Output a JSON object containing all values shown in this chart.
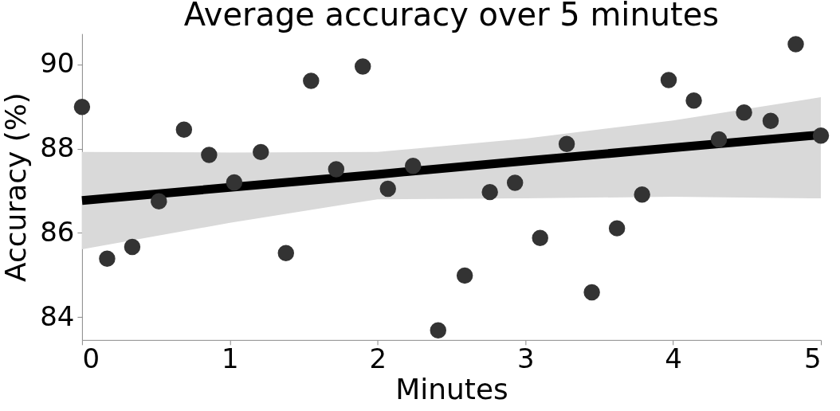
{
  "chart_data": {
    "type": "scatter",
    "title": "Average accuracy over 5 minutes",
    "xlabel": "Minutes",
    "ylabel": "Accuracy (%)",
    "xlim": [
      0,
      5
    ],
    "ylim": [
      83.46,
      90.73
    ],
    "xticks": [
      0,
      1,
      2,
      3,
      4,
      5
    ],
    "yticks": [
      84,
      86,
      88,
      90
    ],
    "grid": false,
    "marker": "circle",
    "series": [
      {
        "color": "#333333",
        "x": [
          0,
          0.17,
          0.34,
          0.52,
          0.69,
          0.86,
          1.03,
          1.21,
          1.38,
          1.55,
          1.72,
          1.9,
          2.07,
          2.24,
          2.41,
          2.59,
          2.76,
          2.93,
          3.1,
          3.28,
          3.45,
          3.62,
          3.79,
          3.97,
          4.14,
          4.31,
          4.48,
          4.66,
          4.83,
          5
        ],
        "values": [
          88.99,
          85.39,
          85.67,
          86.75,
          88.45,
          87.85,
          87.2,
          87.92,
          85.52,
          89.61,
          87.51,
          89.95,
          87.05,
          87.59,
          83.69,
          84.99,
          86.97,
          87.19,
          85.88,
          88.11,
          84.59,
          86.11,
          86.91,
          89.63,
          89.14,
          88.22,
          88.86,
          88.66,
          90.48,
          88.31
        ]
      },
      {
        "type": "line",
        "color": "#000000",
        "marker": "none",
        "line_style": "solid",
        "x": [
          0,
          1,
          2,
          3,
          4,
          5
        ],
        "values": [
          86.77,
          87.08,
          87.39,
          87.71,
          88.02,
          88.33
        ],
        "lower": [
          85.61,
          86.24,
          86.8,
          86.82,
          86.86,
          86.82
        ],
        "upper": [
          87.92,
          87.91,
          87.92,
          88.24,
          88.67,
          89.22
        ]
      }
    ]
  }
}
